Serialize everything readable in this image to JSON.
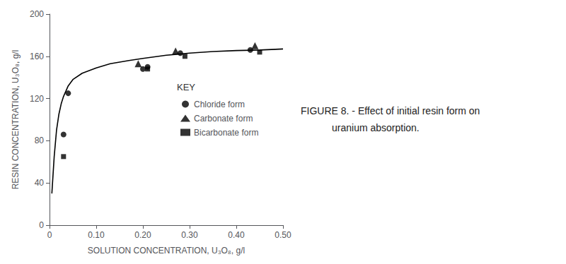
{
  "chart_data": {
    "type": "scatter",
    "xlabel": "SOLUTION CONCENTRATION, U₃O₈, g/l",
    "ylabel": "RESIN CONCENTRATION, U₃O₈, g/l",
    "annotations": [
      "FIGURE 8. - Effect of initial resin form on",
      "uranium absorption."
    ],
    "legend_title": "KEY",
    "legend": "center right",
    "grid": false,
    "xlim": [
      0.0,
      0.5
    ],
    "ylim": [
      0,
      200
    ],
    "xticks": [
      0,
      {
        "value": 0.1,
        "label": "0.10"
      },
      {
        "value": 0.2,
        "label": "0.20"
      },
      {
        "value": 0.3,
        "label": "0.30"
      },
      {
        "value": 0.4,
        "label": "0.40"
      },
      {
        "value": 0.5,
        "label": "0.50"
      }
    ],
    "yticks": [
      0,
      40,
      80,
      120,
      160,
      200
    ],
    "series": [
      {
        "type": "line",
        "line_style": "solid",
        "marker": "none",
        "color": "#000000",
        "x": [
          0.005,
          0.01,
          0.015,
          0.02,
          0.025,
          0.03,
          0.04,
          0.05,
          0.07,
          0.1,
          0.13,
          0.17,
          0.2,
          0.25,
          0.3,
          0.35,
          0.4,
          0.45,
          0.5
        ],
        "values": [
          30,
          65,
          90,
          105,
          115,
          122,
          132,
          138,
          144,
          149,
          153,
          156,
          158,
          161,
          163,
          164.5,
          165.5,
          166,
          167
        ]
      },
      {
        "name": "Chloride form",
        "type": "scatter",
        "marker": "circle",
        "color": "#000000",
        "x": [
          0.03,
          0.04,
          0.2,
          0.21,
          0.28,
          0.43
        ],
        "values": [
          86,
          125,
          148,
          150,
          163,
          166
        ]
      },
      {
        "name": "Carbonate form",
        "type": "scatter",
        "marker": "triangle",
        "color": "#000000",
        "x": [
          0.19,
          0.27,
          0.44
        ],
        "values": [
          153,
          165,
          170
        ]
      },
      {
        "name": "Bicarbonate form",
        "type": "scatter",
        "marker": "square",
        "color": "#000000",
        "x": [
          0.03,
          0.21,
          0.29,
          0.45
        ],
        "values": [
          65,
          148,
          160,
          164
        ]
      }
    ]
  }
}
